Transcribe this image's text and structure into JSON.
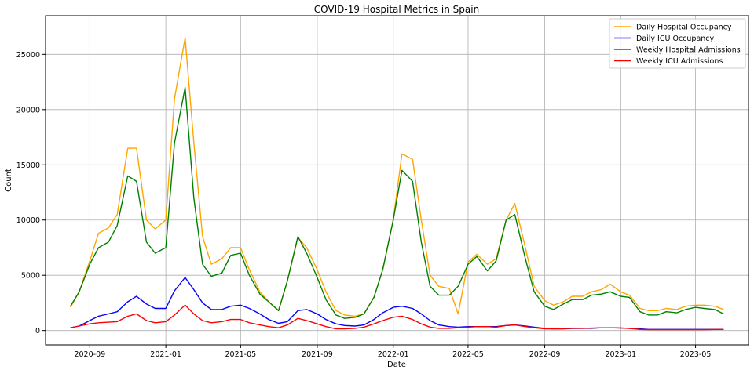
{
  "chart_data": {
    "type": "line",
    "title": "COVID-19 Hospital Metrics in Spain",
    "xlabel": "Date",
    "ylabel": "Count",
    "xlim": [
      "2020-06-22",
      "2023-07-25"
    ],
    "ylim": [
      -1300,
      28500
    ],
    "grid": true,
    "legend_position": "top-right",
    "xticks": [
      "2020-09",
      "2021-01",
      "2021-05",
      "2021-09",
      "2022-01",
      "2022-05",
      "2022-09",
      "2023-01",
      "2023-05"
    ],
    "yticks": [
      0,
      5000,
      10000,
      15000,
      20000,
      25000
    ],
    "x": [
      "2020-08-01",
      "2020-08-15",
      "2020-09-01",
      "2020-09-15",
      "2020-10-01",
      "2020-10-15",
      "2020-11-01",
      "2020-11-15",
      "2020-12-01",
      "2020-12-15",
      "2021-01-01",
      "2021-01-15",
      "2021-02-01",
      "2021-02-15",
      "2021-03-01",
      "2021-03-15",
      "2021-04-01",
      "2021-04-15",
      "2021-05-01",
      "2021-05-15",
      "2021-06-01",
      "2021-06-15",
      "2021-07-01",
      "2021-07-15",
      "2021-08-01",
      "2021-08-15",
      "2021-09-01",
      "2021-09-15",
      "2021-10-01",
      "2021-10-15",
      "2021-11-01",
      "2021-11-15",
      "2021-12-01",
      "2021-12-15",
      "2022-01-01",
      "2022-01-15",
      "2022-02-01",
      "2022-02-15",
      "2022-03-01",
      "2022-03-15",
      "2022-04-01",
      "2022-04-15",
      "2022-05-01",
      "2022-05-15",
      "2022-06-01",
      "2022-06-15",
      "2022-07-01",
      "2022-07-15",
      "2022-08-01",
      "2022-08-15",
      "2022-09-01",
      "2022-09-15",
      "2022-10-01",
      "2022-10-15",
      "2022-11-01",
      "2022-11-15",
      "2022-12-01",
      "2022-12-15",
      "2023-01-01",
      "2023-01-15",
      "2023-02-01",
      "2023-02-15",
      "2023-03-01",
      "2023-03-15",
      "2023-04-01",
      "2023-04-15",
      "2023-05-01",
      "2023-05-15",
      "2023-06-01",
      "2023-06-15"
    ],
    "series": [
      {
        "name": "Daily Hospital Occupancy",
        "color": "#ffa500",
        "values": [
          2100,
          3500,
          6300,
          8800,
          9300,
          10500,
          16500,
          16500,
          10000,
          9200,
          10000,
          21000,
          26500,
          17000,
          8500,
          6000,
          6500,
          7500,
          7500,
          5500,
          3500,
          2600,
          1800,
          4500,
          8400,
          7500,
          5500,
          3500,
          1800,
          1400,
          1300,
          1500,
          3000,
          5500,
          10000,
          16000,
          15500,
          10000,
          5000,
          4000,
          3800,
          1500,
          6200,
          6900,
          6000,
          6500,
          10000,
          11500,
          7500,
          4000,
          2700,
          2300,
          2600,
          3100,
          3100,
          3500,
          3700,
          4200,
          3500,
          3200,
          2000,
          1800,
          1800,
          2000,
          1900,
          2200,
          2300,
          2300,
          2200,
          1900
        ]
      },
      {
        "name": "Daily ICU Occupancy",
        "color": "#0000ff",
        "values": [
          250,
          400,
          900,
          1300,
          1500,
          1700,
          2600,
          3100,
          2400,
          2000,
          2000,
          3600,
          4800,
          3700,
          2500,
          1900,
          1900,
          2200,
          2300,
          2000,
          1500,
          1000,
          650,
          800,
          1800,
          1900,
          1500,
          1000,
          600,
          450,
          400,
          500,
          1000,
          1600,
          2100,
          2200,
          2000,
          1500,
          900,
          500,
          350,
          300,
          350,
          350,
          350,
          350,
          450,
          500,
          400,
          300,
          200,
          150,
          150,
          180,
          200,
          200,
          250,
          250,
          230,
          200,
          150,
          100,
          100,
          100,
          100,
          100,
          100,
          100,
          100,
          100
        ]
      },
      {
        "name": "Weekly Hospital Admissions",
        "color": "#008000",
        "values": [
          2200,
          3500,
          6000,
          7500,
          8000,
          9500,
          14000,
          13500,
          8000,
          7000,
          7500,
          17000,
          22000,
          12000,
          6000,
          4900,
          5200,
          6800,
          7000,
          5000,
          3300,
          2600,
          1800,
          4500,
          8500,
          7000,
          4800,
          2800,
          1400,
          1100,
          1200,
          1500,
          3000,
          5500,
          10000,
          14500,
          13500,
          8000,
          4000,
          3200,
          3200,
          4000,
          6000,
          6700,
          5400,
          6300,
          10000,
          10500,
          6500,
          3500,
          2200,
          1900,
          2400,
          2800,
          2800,
          3200,
          3300,
          3500,
          3100,
          3000,
          1700,
          1400,
          1400,
          1700,
          1600,
          1900,
          2100,
          2000,
          1900,
          1500
        ]
      },
      {
        "name": "Weekly ICU Admissions",
        "color": "#ff0000",
        "values": [
          250,
          400,
          600,
          700,
          750,
          800,
          1300,
          1500,
          900,
          700,
          800,
          1400,
          2300,
          1500,
          900,
          700,
          800,
          1000,
          1000,
          700,
          500,
          350,
          250,
          500,
          1100,
          900,
          600,
          350,
          150,
          150,
          200,
          300,
          600,
          900,
          1200,
          1300,
          1000,
          600,
          300,
          200,
          200,
          250,
          300,
          350,
          350,
          300,
          450,
          500,
          350,
          250,
          150,
          150,
          170,
          200,
          200,
          220,
          250,
          250,
          220,
          180,
          100,
          80,
          80,
          80,
          80,
          80,
          80,
          80,
          100,
          100
        ]
      }
    ]
  }
}
